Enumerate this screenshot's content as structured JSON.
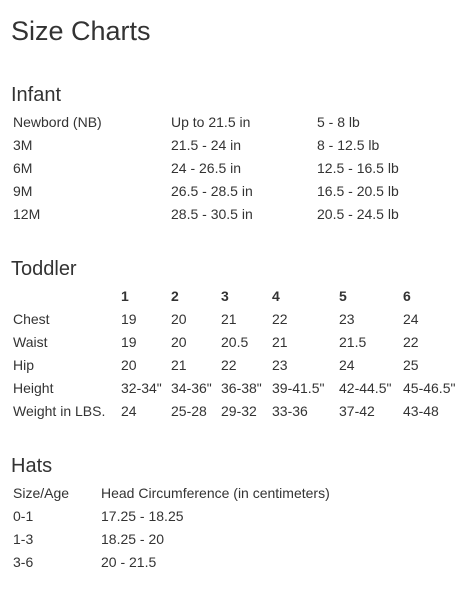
{
  "page_title": "Size Charts",
  "infant": {
    "heading": "Infant",
    "rows": [
      [
        "Newbord (NB)",
        "Up to 21.5 in",
        "5 - 8 lb"
      ],
      [
        "3M",
        "21.5 - 24 in",
        "8 - 12.5 lb"
      ],
      [
        "6M",
        "24 - 26.5 in",
        "12.5 - 16.5 lb"
      ],
      [
        "9M",
        "26.5 - 28.5 in",
        "16.5 - 20.5 lb"
      ],
      [
        "12M",
        "28.5 - 30.5 in",
        "20.5 - 24.5 lb"
      ]
    ]
  },
  "toddler": {
    "heading": "Toddler",
    "columns": [
      "",
      "1",
      "2",
      "3",
      "4",
      "5",
      "6"
    ],
    "rows": [
      [
        "Chest",
        "19",
        "20",
        "21",
        "22",
        "23",
        "24"
      ],
      [
        "Waist",
        "19",
        "20",
        "20.5",
        "21",
        "21.5",
        "22"
      ],
      [
        "Hip",
        "20",
        "21",
        "22",
        "23",
        "24",
        "25"
      ],
      [
        "Height",
        "32-34\"",
        "34-36\"",
        "36-38\"",
        "39-41.5\"",
        "42-44.5\"",
        "45-46.5\""
      ],
      [
        "Weight in LBS.",
        "24",
        "25-28",
        "29-32",
        "33-36",
        "37-42",
        "43-48"
      ]
    ]
  },
  "hats": {
    "heading": "Hats",
    "columns": [
      "Size/Age",
      "Head Circumference (in centimeters)"
    ],
    "rows": [
      [
        "0-1",
        "17.25 - 18.25"
      ],
      [
        "1-3",
        "18.25 - 20"
      ],
      [
        "3-6",
        "20 - 21.5"
      ]
    ]
  }
}
